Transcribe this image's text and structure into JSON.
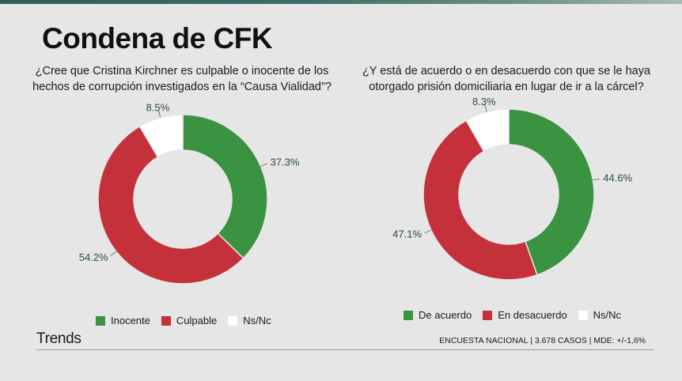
{
  "title": "Condena de CFK",
  "brand": "Trends",
  "footnote": "ENCUESTA NACIONAL | 3.678 CASOS | MDE: +/-1,6%",
  "chart_data": [
    {
      "type": "pie",
      "donut": true,
      "title": "¿Cree que Cristina Kirchner es culpable o inocente de los hechos de corrupción investigados en la “Causa Vialidad”?",
      "labels": [
        "Inocente",
        "Culpable",
        "Ns/Nc"
      ],
      "values": [
        37.3,
        54.2,
        8.5
      ],
      "value_labels": [
        "37.3%",
        "54.2%",
        "8.5%"
      ],
      "colors": [
        "#3a9340",
        "#c4313a",
        "#ffffff"
      ],
      "legend_position": "bottom"
    },
    {
      "type": "pie",
      "donut": true,
      "title": "¿Y está de acuerdo o en desacuerdo con que se le haya otorgado prisión domiciliaria en lugar de ir a la cárcel?",
      "labels": [
        "De acuerdo",
        "En desacuerdo",
        "Ns/Nc"
      ],
      "values": [
        44.6,
        47.1,
        8.3
      ],
      "value_labels": [
        "44.6%",
        "47.1%",
        "8.3%"
      ],
      "colors": [
        "#3a9340",
        "#c4313a",
        "#ffffff"
      ],
      "legend_position": "bottom"
    }
  ]
}
